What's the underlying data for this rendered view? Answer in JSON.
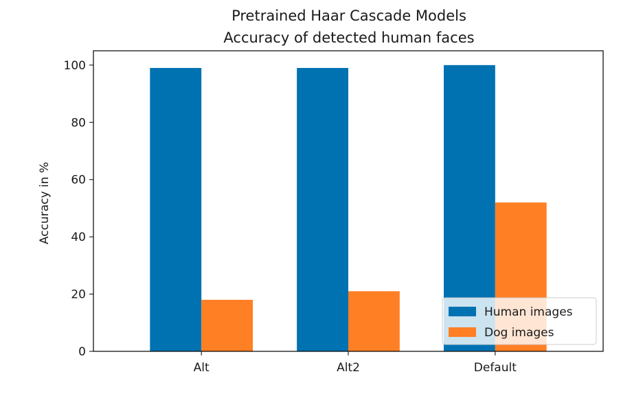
{
  "chart_data": {
    "type": "bar",
    "title": "Pretrained Haar Cascade Models",
    "subtitle": "Accuracy of detected human faces",
    "xlabel": "",
    "ylabel": "Accuracy in %",
    "categories": [
      "Alt",
      "Alt2",
      "Default"
    ],
    "series": [
      {
        "name": "Human images",
        "values": [
          99,
          99,
          100
        ],
        "color": "#0072b2"
      },
      {
        "name": "Dog images",
        "values": [
          18,
          21,
          52
        ],
        "color": "#ff7f24"
      }
    ],
    "ylim": [
      0,
      105
    ],
    "yticks": [
      0,
      20,
      40,
      60,
      80,
      100
    ],
    "grid": false,
    "legend_position": "lower-right"
  }
}
